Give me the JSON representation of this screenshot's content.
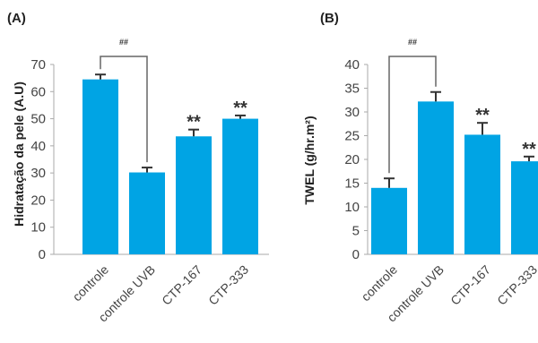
{
  "chart_data": [
    {
      "type": "bar",
      "panel_label": "(A)",
      "title": "",
      "xlabel": "",
      "ylabel": "Hidratação da pele (A.U)",
      "categories": [
        "controle",
        "controle UVB",
        "CTP-167",
        "CTP-333"
      ],
      "values": [
        64.5,
        30.2,
        43.5,
        50.0
      ],
      "errors": [
        1.8,
        1.8,
        2.5,
        1.2
      ],
      "annotations": [
        "",
        "",
        "**",
        "**"
      ],
      "bracket": {
        "from": 0,
        "to": 1,
        "label": "##"
      },
      "ylim": [
        0,
        70
      ],
      "yticks": [
        "0",
        "10",
        "20",
        "30",
        "40",
        "50",
        "60",
        "70"
      ],
      "bar_color": "#00A4E4",
      "error_color": "#333333",
      "grid": false
    },
    {
      "type": "bar",
      "panel_label": "(B)",
      "title": "",
      "xlabel": "",
      "ylabel": "TWEL (g/hr.m²)",
      "categories": [
        "controle",
        "controle UVB",
        "CTP-167",
        "CTP-333"
      ],
      "values": [
        14.0,
        32.2,
        25.2,
        19.6
      ],
      "errors": [
        2.0,
        2.0,
        2.5,
        1.0
      ],
      "annotations": [
        "",
        "",
        "**",
        "**"
      ],
      "bracket": {
        "from": 0,
        "to": 1,
        "label": "##"
      },
      "ylim": [
        0,
        40
      ],
      "yticks": [
        "0",
        "5",
        "10",
        "15",
        "20",
        "25",
        "30",
        "35",
        "40"
      ],
      "bar_color": "#00A4E4",
      "error_color": "#333333",
      "grid": false
    }
  ]
}
